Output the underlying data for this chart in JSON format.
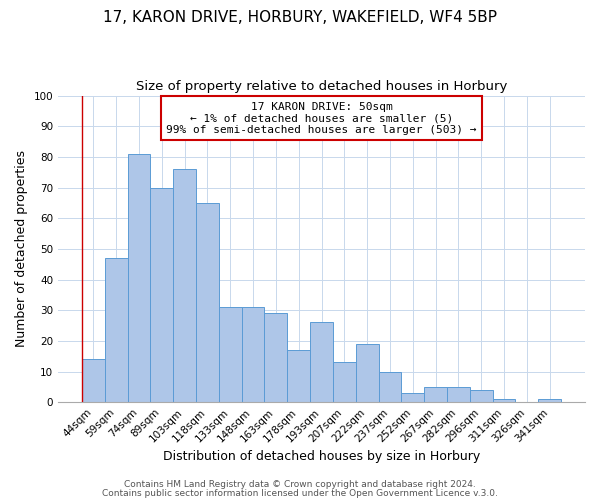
{
  "title": "17, KARON DRIVE, HORBURY, WAKEFIELD, WF4 5BP",
  "subtitle": "Size of property relative to detached houses in Horbury",
  "xlabel": "Distribution of detached houses by size in Horbury",
  "ylabel": "Number of detached properties",
  "bar_labels": [
    "44sqm",
    "59sqm",
    "74sqm",
    "89sqm",
    "103sqm",
    "118sqm",
    "133sqm",
    "148sqm",
    "163sqm",
    "178sqm",
    "193sqm",
    "207sqm",
    "222sqm",
    "237sqm",
    "252sqm",
    "267sqm",
    "282sqm",
    "296sqm",
    "311sqm",
    "326sqm",
    "341sqm"
  ],
  "bar_values": [
    14,
    47,
    81,
    70,
    76,
    65,
    31,
    31,
    29,
    17,
    26,
    13,
    19,
    10,
    3,
    5,
    5,
    4,
    1,
    0,
    1
  ],
  "bar_color": "#aec6e8",
  "bar_edge_color": "#5b9bd5",
  "ylim": [
    0,
    100
  ],
  "yticks": [
    0,
    10,
    20,
    30,
    40,
    50,
    60,
    70,
    80,
    90,
    100
  ],
  "annotation_line1": "17 KARON DRIVE: 50sqm",
  "annotation_line2": "← 1% of detached houses are smaller (5)",
  "annotation_line3": "99% of semi-detached houses are larger (503) →",
  "annotation_box_color": "#ffffff",
  "annotation_box_edge_color": "#cc0000",
  "footer_line1": "Contains HM Land Registry data © Crown copyright and database right 2024.",
  "footer_line2": "Contains public sector information licensed under the Open Government Licence v.3.0.",
  "bg_color": "#ffffff",
  "grid_color": "#c8d8ec",
  "title_fontsize": 11,
  "subtitle_fontsize": 9.5,
  "axis_label_fontsize": 9,
  "tick_fontsize": 7.5,
  "annotation_fontsize": 8,
  "footer_fontsize": 6.5
}
